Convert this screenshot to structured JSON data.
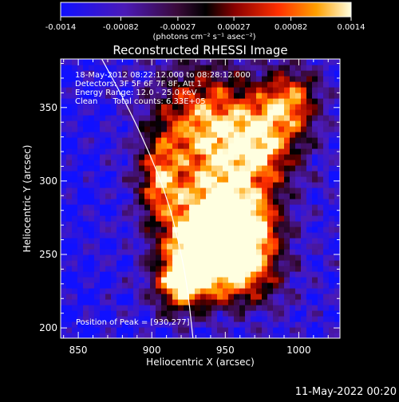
{
  "chart_data": {
    "type": "heatmap",
    "title": "Reconstructed RHESSI Image",
    "xlabel": "Heliocentric X (arcsec)",
    "ylabel": "Heliocentric Y (arcsec)",
    "xlim": [
      838,
      1028
    ],
    "ylim": [
      193,
      383
    ],
    "x_ticks": [
      850,
      900,
      950,
      1000
    ],
    "y_ticks": [
      200,
      250,
      300,
      350
    ],
    "colorbar": {
      "range": [
        -0.0014,
        0.0014
      ],
      "tick_values": [
        -0.0014,
        -0.00082,
        -0.00027,
        0.00027,
        0.00082,
        0.0014
      ],
      "tick_labels": [
        "-0.0014",
        "-0.00082",
        "-0.00027",
        "0.00027",
        "0.00082",
        "0.0014"
      ],
      "unit_label": "(photons cm⁻² s⁻¹ asec⁻²)"
    },
    "annotations": [
      "18-May-2012 08:22:12.000 to 08:28:12.000",
      "Detectors: 3F 5F 6F 7F 8F, Att 1",
      "Energy Range: 12.0 - 25.0 keV",
      "Clean      Total counts: 6.33E+05"
    ],
    "peak_label": "Position of Peak = [930,277]",
    "peak": [
      930,
      277
    ],
    "limb_curve": [
      [
        866,
        383
      ],
      [
        884,
        350
      ],
      [
        898,
        320
      ],
      [
        910,
        290
      ],
      [
        918,
        260
      ],
      [
        924,
        230
      ],
      [
        928,
        193
      ]
    ],
    "emission_blobs": [
      {
        "x": 945,
        "y": 278,
        "amp": 0.00125,
        "sx": 22,
        "sy": 24
      },
      {
        "x": 928,
        "y": 250,
        "amp": 0.0009,
        "sx": 16,
        "sy": 18
      },
      {
        "x": 935,
        "y": 340,
        "amp": 0.001,
        "sx": 24,
        "sy": 28
      },
      {
        "x": 975,
        "y": 325,
        "amp": 0.00085,
        "sx": 18,
        "sy": 22
      },
      {
        "x": 995,
        "y": 355,
        "amp": 0.0006,
        "sx": 14,
        "sy": 16
      },
      {
        "x": 965,
        "y": 265,
        "amp": 0.0008,
        "sx": 16,
        "sy": 16
      },
      {
        "x": 918,
        "y": 228,
        "amp": 0.0006,
        "sx": 12,
        "sy": 14
      },
      {
        "x": 960,
        "y": 235,
        "amp": 0.0006,
        "sx": 20,
        "sy": 16
      },
      {
        "x": 905,
        "y": 300,
        "amp": 0.0005,
        "sx": 10,
        "sy": 20
      }
    ]
  },
  "footer": {
    "timestamp": "11-May-2022 00:20"
  }
}
